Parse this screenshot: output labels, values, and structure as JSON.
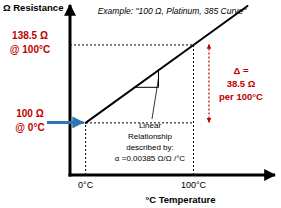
{
  "chart_data": {
    "type": "line",
    "title": "Example: \"100 Ω, Platinum, 385 Curve\"",
    "x_label": "°C Temperature",
    "y_label": "Ω Resistance",
    "x": [
      0,
      100,
      150
    ],
    "values": [
      100,
      138.5,
      157.75
    ],
    "color": "#000000",
    "xlim": [
      -14,
      176
    ],
    "ylim": [
      74,
      158
    ],
    "xticks": [
      {
        "value": 0,
        "label": "0°C"
      },
      {
        "value": 100,
        "label": "100°C"
      }
    ],
    "tick_labels": "x",
    "grid": false,
    "points": [
      {
        "x": 0,
        "y": 100,
        "label": [
          "100 Ω",
          "@ 0°C"
        ],
        "color": "#c00000",
        "arrow_color": "#2e75b6"
      },
      {
        "x": 100,
        "y": 138.5,
        "label": [
          "138.5 Ω",
          "@ 100°C"
        ],
        "color": "#c00000"
      }
    ],
    "slope_note": [
      "Linear",
      "Relationship",
      "described by:",
      "α =0.00385 Ω/Ω /°C"
    ],
    "delta_note": {
      "label": [
        "Δ =",
        "38.5 Ω",
        "per 100°C"
      ],
      "color": "#c00000"
    }
  }
}
